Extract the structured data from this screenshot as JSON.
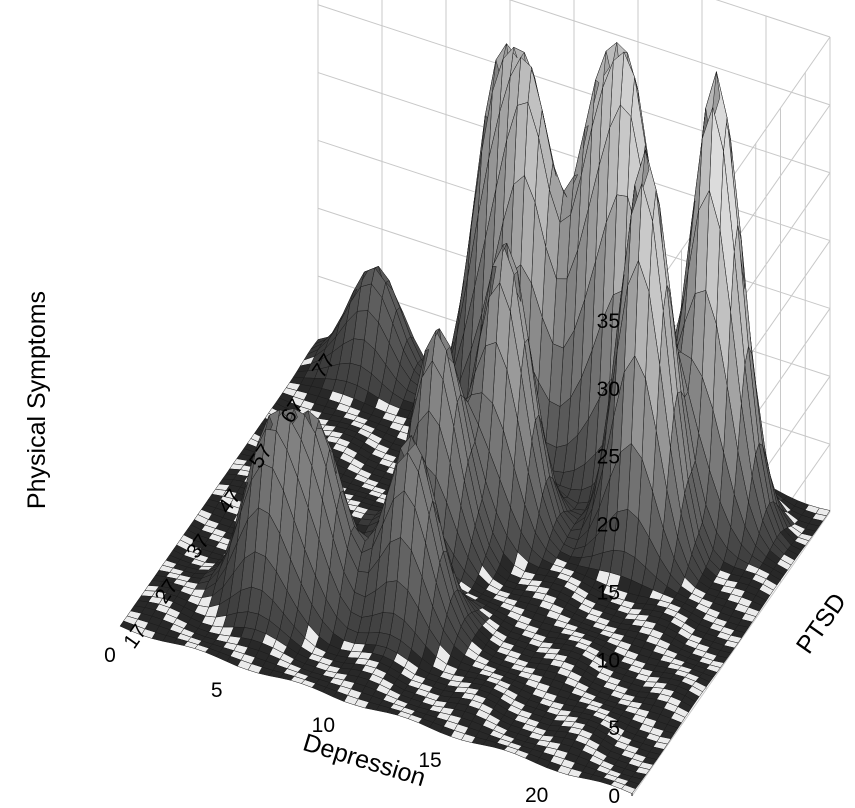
{
  "chart_data": {
    "type": "surface",
    "title": "",
    "xlabel": "Depression",
    "ylabel": "PTSD",
    "zlabel": "Physical Symptoms",
    "x_ticks": [
      "0",
      "5",
      "10",
      "15",
      "20"
    ],
    "y_ticks": [
      "17",
      "27",
      "37",
      "47",
      "57",
      "67",
      "77"
    ],
    "z_ticks": [
      "0",
      "5",
      "10",
      "15",
      "20",
      "25",
      "30",
      "35"
    ],
    "xlim": [
      0,
      24
    ],
    "ylim": [
      17,
      80
    ],
    "zlim": [
      0,
      35
    ],
    "grid": true,
    "colormap": "grayscale",
    "peaks": [
      {
        "x": 20,
        "y": 71,
        "z": 33
      },
      {
        "x": 18,
        "y": 62,
        "z": 29
      },
      {
        "x": 16,
        "y": 72,
        "z": 26
      },
      {
        "x": 14,
        "y": 74,
        "z": 24
      },
      {
        "x": 11,
        "y": 73,
        "z": 24
      },
      {
        "x": 9,
        "y": 76,
        "z": 24
      },
      {
        "x": 12,
        "y": 58,
        "z": 21
      },
      {
        "x": 10,
        "y": 50,
        "z": 16
      },
      {
        "x": 11,
        "y": 35,
        "z": 14
      },
      {
        "x": 7,
        "y": 33,
        "z": 12
      },
      {
        "x": 5,
        "y": 30,
        "z": 12
      },
      {
        "x": 3,
        "y": 78,
        "z": 8
      }
    ]
  }
}
